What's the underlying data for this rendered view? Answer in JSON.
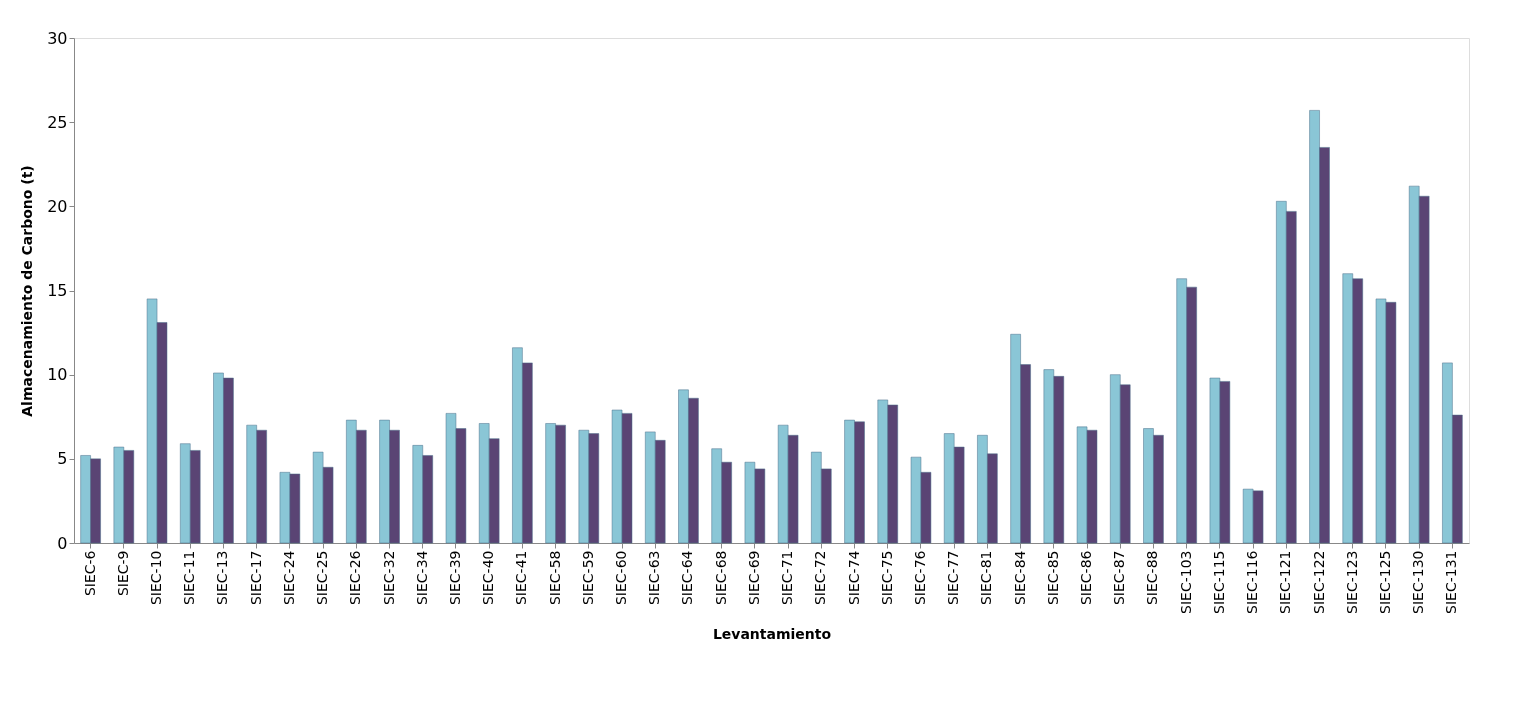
{
  "chart_data": {
    "type": "bar",
    "xlabel": "Levantamiento",
    "ylabel": "Almacenamiento de Carbono (t)",
    "categories": [
      "SIEC-6",
      "SIEC-9",
      "SIEC-10",
      "SIEC-11",
      "SIEC-13",
      "SIEC-17",
      "SIEC-24",
      "SIEC-25",
      "SIEC-26",
      "SIEC-32",
      "SIEC-34",
      "SIEC-39",
      "SIEC-40",
      "SIEC-41",
      "SIEC-58",
      "SIEC-59",
      "SIEC-60",
      "SIEC-63",
      "SIEC-64",
      "SIEC-68",
      "SIEC-69",
      "SIEC-71",
      "SIEC-72",
      "SIEC-74",
      "SIEC-75",
      "SIEC-76",
      "SIEC-77",
      "SIEC-81",
      "SIEC-84",
      "SIEC-85",
      "SIEC-86",
      "SIEC-87",
      "SIEC-88",
      "SIEC-103",
      "SIEC-115",
      "SIEC-116",
      "SIEC-121",
      "SIEC-122",
      "SIEC-123",
      "SIEC-125",
      "SIEC-130",
      "SIEC-131"
    ],
    "series": [
      {
        "color": "#8ac6d6",
        "values": [
          5.2,
          5.7,
          14.5,
          5.9,
          10.1,
          7.0,
          4.2,
          5.4,
          7.3,
          7.3,
          5.8,
          7.7,
          7.1,
          11.6,
          7.1,
          6.7,
          7.9,
          6.6,
          9.1,
          5.6,
          4.8,
          7.0,
          5.4,
          7.3,
          8.5,
          5.1,
          6.5,
          6.4,
          12.4,
          10.3,
          6.9,
          10.0,
          6.8,
          15.7,
          9.8,
          3.2,
          20.3,
          25.7,
          16.0,
          14.5,
          21.2,
          10.7
        ]
      },
      {
        "color": "#5a4474",
        "values": [
          5.0,
          5.5,
          13.1,
          5.5,
          9.8,
          6.7,
          4.1,
          4.5,
          6.7,
          6.7,
          5.2,
          6.8,
          6.2,
          10.7,
          7.0,
          6.5,
          7.7,
          6.1,
          8.6,
          4.8,
          4.4,
          6.4,
          4.4,
          7.2,
          8.2,
          4.2,
          5.7,
          5.3,
          10.6,
          9.9,
          6.7,
          9.4,
          6.4,
          15.2,
          9.6,
          3.1,
          19.7,
          23.5,
          15.7,
          14.3,
          20.6,
          7.6
        ]
      }
    ],
    "ylim": [
      0,
      30
    ],
    "yticks": [
      0,
      5,
      10,
      15,
      20,
      25,
      30
    ],
    "grid": false,
    "legend": false
  }
}
